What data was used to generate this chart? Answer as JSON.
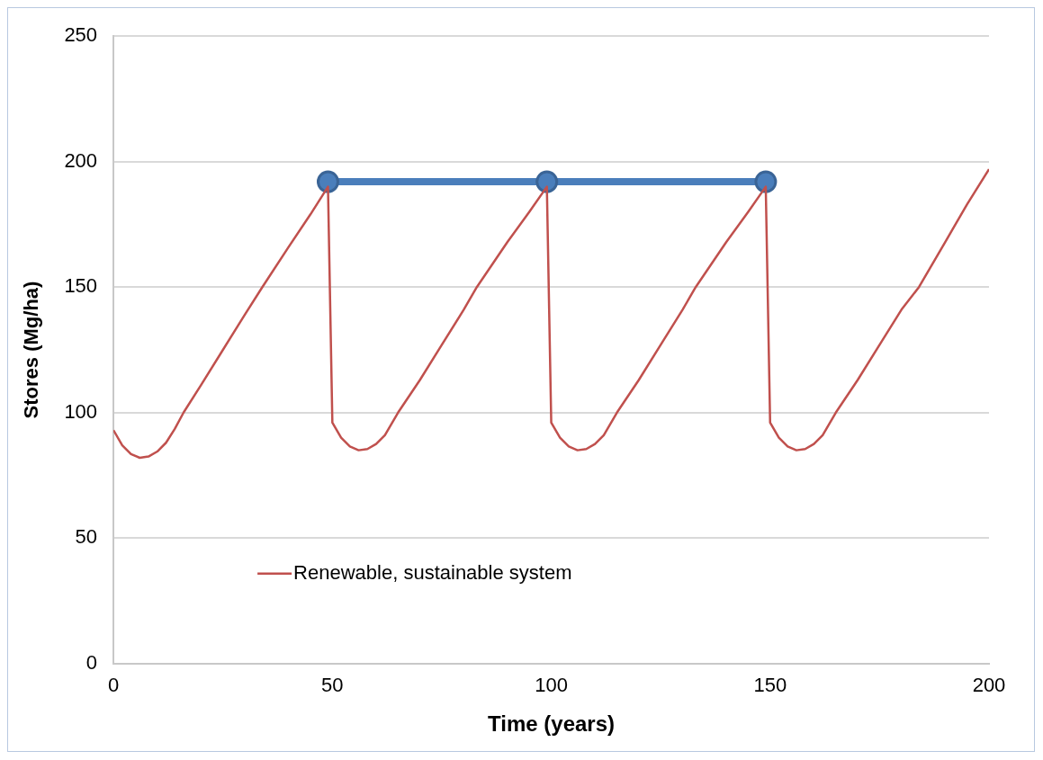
{
  "chart_data": {
    "type": "line",
    "xlabel": "Time (years)",
    "ylabel": "Stores (Mg/ha)",
    "xlim": [
      0,
      200
    ],
    "xticks": [
      0,
      50,
      100,
      150,
      200
    ],
    "ylim": [
      0,
      250
    ],
    "yticks": [
      0,
      50,
      100,
      150,
      200,
      250
    ],
    "grid": "y",
    "legend": "bottom left",
    "series": [
      {
        "name": "Renewable, sustainable system",
        "color": "#c0504d",
        "marker": "none",
        "x": [
          0,
          2,
          4,
          6,
          8,
          10,
          12,
          14,
          16,
          20,
          25,
          30,
          34,
          40,
          45,
          49,
          50,
          52,
          54,
          56,
          58,
          60,
          62,
          65,
          70,
          75,
          80,
          83,
          90,
          95,
          99,
          100,
          102,
          104,
          106,
          108,
          110,
          112,
          115,
          120,
          125,
          130,
          133,
          140,
          145,
          149,
          150,
          152,
          154,
          156,
          158,
          160,
          162,
          165,
          170,
          175,
          180,
          184,
          190,
          195,
          200
        ],
        "values": [
          93,
          87,
          83.5,
          82,
          82.5,
          84.5,
          88,
          93.5,
          100,
          111,
          125,
          139,
          150,
          166,
          179,
          190,
          96,
          90,
          86.5,
          85,
          85.5,
          87.5,
          91,
          100,
          113,
          127,
          141,
          150,
          168,
          180,
          190,
          96,
          90,
          86.5,
          85,
          85.5,
          87.5,
          91,
          100,
          113,
          127,
          141,
          150,
          168,
          180,
          190,
          96,
          90,
          86.5,
          85,
          85.5,
          87.5,
          91,
          100,
          113,
          127,
          141,
          150,
          168,
          183,
          197
        ]
      },
      {
        "color": "#4a7ebb",
        "marker": "circle",
        "x": [
          49,
          99,
          149
        ],
        "values": [
          192,
          192,
          192
        ]
      }
    ]
  }
}
